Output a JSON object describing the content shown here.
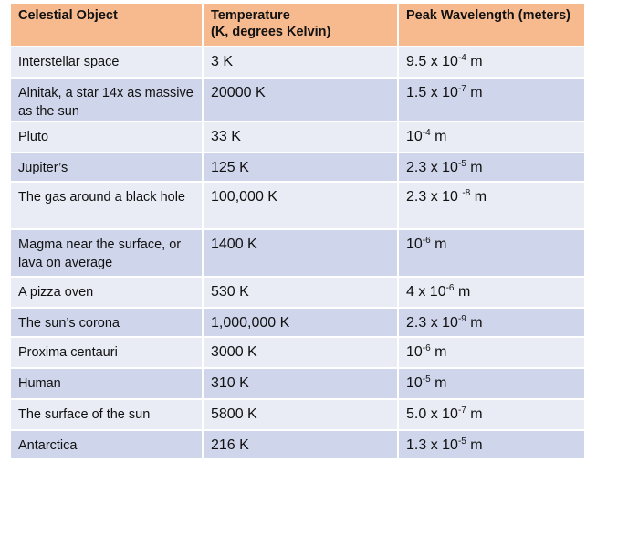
{
  "headers": {
    "object": "Celestial Object",
    "temperature": "Temperature",
    "temperature_unit": "(K, degrees Kelvin)",
    "wavelength": "Peak Wavelength (meters)"
  },
  "rows": [
    {
      "object": "Interstellar space",
      "temp": "3 K",
      "mant": "9.5 x 10",
      "exp": "-4",
      "unit": " m"
    },
    {
      "object": "Alnitak, a star 14x as massive as the sun",
      "temp": "20000 K",
      "mant": "1.5 x 10",
      "exp": "-7",
      "unit": " m"
    },
    {
      "object": "Pluto",
      "temp": "33 K",
      "mant": "10",
      "exp": "-4",
      "unit": " m"
    },
    {
      "object": "Jupiter’s",
      "temp": "125 K",
      "mant": "2.3 x 10",
      "exp": "-5",
      "unit": " m"
    },
    {
      "object": " The gas around a black hole",
      "temp": "100,000 K",
      "mant": "2.3 x 10 ",
      "exp": "-8",
      "unit": " m"
    },
    {
      "object": "Magma near the surface, or lava on average",
      "temp": "1400 K",
      "mant": "10",
      "exp": "-6",
      "unit": " m"
    },
    {
      "object": "A pizza oven",
      "temp": "530 K",
      "mant": "4 x 10",
      "exp": "-6",
      "unit": " m"
    },
    {
      "object": "The sun’s corona",
      "temp": "1,000,000  K",
      "mant": "2.3 x 10",
      "exp": "-9",
      "unit": " m"
    },
    {
      "object": "Proxima centauri",
      "temp": "3000 K",
      "mant": "10",
      "exp": "-6",
      "unit": " m"
    },
    {
      "object": "Human",
      "temp": "310 K",
      "mant": "10",
      "exp": "-5",
      "unit": " m"
    },
    {
      "object": "The surface of the sun",
      "temp": "5800 K",
      "mant": "5.0 x 10",
      "exp": "-7",
      "unit": " m"
    },
    {
      "object": "Antarctica",
      "temp": "216 K",
      "mant": "1.3 x 10",
      "exp": "-5",
      "unit": " m"
    }
  ]
}
